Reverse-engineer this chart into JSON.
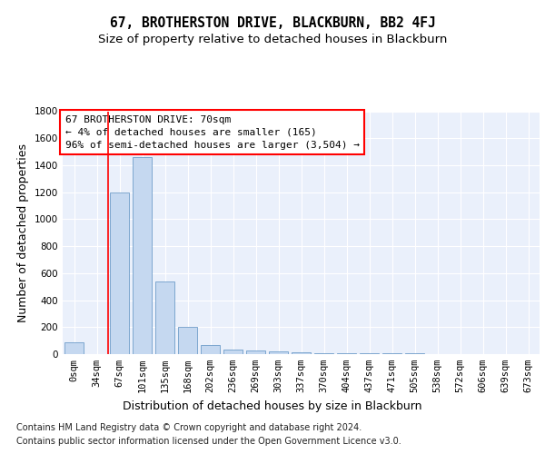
{
  "title": "67, BROTHERSTON DRIVE, BLACKBURN, BB2 4FJ",
  "subtitle": "Size of property relative to detached houses in Blackburn",
  "xlabel": "Distribution of detached houses by size in Blackburn",
  "ylabel": "Number of detached properties",
  "footnote1": "Contains HM Land Registry data © Crown copyright and database right 2024.",
  "footnote2": "Contains public sector information licensed under the Open Government Licence v3.0.",
  "bar_color": "#c5d8f0",
  "bar_edge_color": "#5a8fc0",
  "categories": [
    "0sqm",
    "34sqm",
    "67sqm",
    "101sqm",
    "135sqm",
    "168sqm",
    "202sqm",
    "236sqm",
    "269sqm",
    "303sqm",
    "337sqm",
    "370sqm",
    "404sqm",
    "437sqm",
    "471sqm",
    "505sqm",
    "538sqm",
    "572sqm",
    "606sqm",
    "639sqm",
    "673sqm"
  ],
  "values": [
    90,
    0,
    1200,
    1460,
    535,
    205,
    65,
    35,
    30,
    22,
    15,
    8,
    8,
    7,
    5,
    4,
    3,
    2,
    2,
    1,
    0
  ],
  "ylim": [
    0,
    1800
  ],
  "yticks": [
    0,
    200,
    400,
    600,
    800,
    1000,
    1200,
    1400,
    1600,
    1800
  ],
  "annotation_title": "67 BROTHERSTON DRIVE: 70sqm",
  "annotation_line1": "← 4% of detached houses are smaller (165)",
  "annotation_line2": "96% of semi-detached houses are larger (3,504) →",
  "bg_color": "#eaf0fb",
  "grid_color": "#ffffff",
  "title_fontsize": 10.5,
  "subtitle_fontsize": 9.5,
  "axis_label_fontsize": 9,
  "tick_fontsize": 7.5,
  "annotation_fontsize": 8,
  "footnote_fontsize": 7
}
